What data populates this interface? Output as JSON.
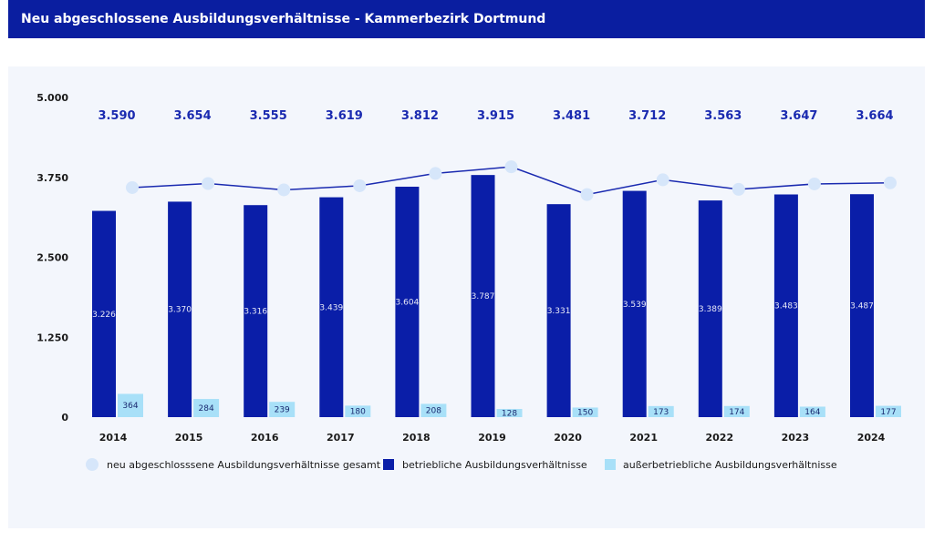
{
  "header": {
    "title": "Neu abgeschlossene Ausbildungsverhältnisse - Kammerbezirk Dortmund"
  },
  "colors": {
    "header_bg": "#0a1ea0",
    "bar_betrieblich": "#0a1ea8",
    "bar_ausserbetrieblich": "#a8e0f8",
    "line_total": "#1a2ab0",
    "marker_total": "#d6e6fa"
  },
  "chart_data": {
    "type": "bar",
    "title": "",
    "xlabel": "",
    "ylabel": "",
    "ylim": [
      0,
      5000
    ],
    "yticks": [
      0,
      1250,
      2500,
      3750,
      5000
    ],
    "ytick_labels": [
      "0",
      "1.250",
      "2.500",
      "3.750",
      "5.000"
    ],
    "categories": [
      "2014",
      "2015",
      "2016",
      "2017",
      "2018",
      "2019",
      "2020",
      "2021",
      "2022",
      "2023",
      "2024"
    ],
    "series": [
      {
        "name": "neu abgeschlosssene Ausbildungsverhältnisse gesamt",
        "kind": "line",
        "values": [
          3590,
          3654,
          3555,
          3619,
          3812,
          3915,
          3481,
          3712,
          3563,
          3647,
          3664
        ],
        "labels": [
          "3.590",
          "3.654",
          "3.555",
          "3.619",
          "3.812",
          "3.915",
          "3.481",
          "3.712",
          "3.563",
          "3.647",
          "3.664"
        ]
      },
      {
        "name": "betriebliche Ausbildungsverhältnisse",
        "kind": "bar",
        "values": [
          3226,
          3370,
          3316,
          3439,
          3604,
          3787,
          3331,
          3539,
          3389,
          3483,
          3487
        ],
        "labels": [
          "3.226",
          "3.370",
          "3.316",
          "3.439",
          "3.604",
          "3.787",
          "3.331",
          "3.539",
          "3.389",
          "3.483",
          "3.487"
        ]
      },
      {
        "name": "außerbetriebliche Ausbildungsverhältnisse",
        "kind": "bar",
        "values": [
          364,
          284,
          239,
          180,
          208,
          128,
          150,
          173,
          174,
          164,
          177
        ],
        "labels": [
          "364",
          "284",
          "239",
          "180",
          "208",
          "128",
          "150",
          "173",
          "174",
          "164",
          "177"
        ]
      }
    ],
    "grid": false,
    "legend": "bottom"
  }
}
